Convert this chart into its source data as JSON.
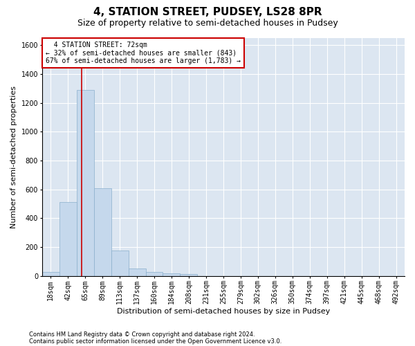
{
  "title": "4, STATION STREET, PUDSEY, LS28 8PR",
  "subtitle": "Size of property relative to semi-detached houses in Pudsey",
  "xlabel": "Distribution of semi-detached houses by size in Pudsey",
  "ylabel": "Number of semi-detached properties",
  "footnote1": "Contains HM Land Registry data © Crown copyright and database right 2024.",
  "footnote2": "Contains public sector information licensed under the Open Government Licence v3.0.",
  "bin_labels": [
    "18sqm",
    "42sqm",
    "65sqm",
    "89sqm",
    "113sqm",
    "137sqm",
    "160sqm",
    "184sqm",
    "208sqm",
    "231sqm",
    "255sqm",
    "279sqm",
    "302sqm",
    "326sqm",
    "350sqm",
    "374sqm",
    "397sqm",
    "421sqm",
    "445sqm",
    "468sqm",
    "492sqm"
  ],
  "bar_values": [
    27,
    510,
    1290,
    610,
    175,
    50,
    28,
    18,
    12,
    0,
    0,
    0,
    0,
    0,
    0,
    0,
    0,
    0,
    0,
    0,
    0
  ],
  "bar_color": "#c5d8ec",
  "bar_edge_color": "#8ab0cc",
  "property_value": 72,
  "property_label": "4 STATION STREET: 72sqm",
  "pct_smaller": 32,
  "count_smaller": 843,
  "pct_larger": 67,
  "count_larger": 1783,
  "vline_color": "#cc0000",
  "annotation_box_color": "#cc0000",
  "ylim": [
    0,
    1650
  ],
  "yticks": [
    0,
    200,
    400,
    600,
    800,
    1000,
    1200,
    1400,
    1600
  ],
  "background_color": "#ffffff",
  "plot_bg_color": "#dce6f1",
  "grid_color": "#ffffff",
  "title_fontsize": 11,
  "subtitle_fontsize": 9,
  "axis_label_fontsize": 8,
  "tick_fontsize": 7,
  "annotation_fontsize": 7,
  "footnote_fontsize": 6
}
